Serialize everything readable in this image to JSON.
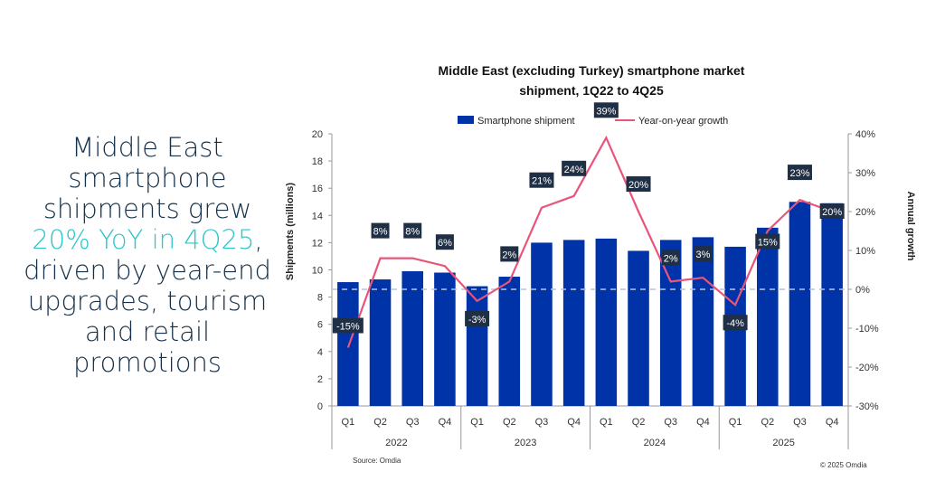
{
  "headline": {
    "before": "Middle East smartphone shipments grew",
    "highlight": "20% YoY in 4Q25",
    "after": ", driven by year-end upgrades, tourism and retail promotions"
  },
  "colors": {
    "bar": "#0033a8",
    "line": "#e8557a",
    "label_bg": "#1f2f45",
    "headline": "#14304a",
    "highlight": "#2ec6c9"
  },
  "chart_data": {
    "type": "bar",
    "title_line1": "Middle East (excluding Turkey) smartphone market",
    "title_line2": "shipment, 1Q22 to 4Q25",
    "ylabel": "Shipments (millions)",
    "y2label": "Annual growth",
    "ylim": [
      0,
      20
    ],
    "y2lim": [
      -30,
      40
    ],
    "yticks": [
      "0",
      "2",
      "4",
      "6",
      "8",
      "10",
      "12",
      "14",
      "16",
      "18",
      "20"
    ],
    "y2ticks": [
      "-30%",
      "-20%",
      "-10%",
      "0%",
      "10%",
      "20%",
      "30%",
      "40%"
    ],
    "categories": [
      "Q1",
      "Q2",
      "Q3",
      "Q4",
      "Q1",
      "Q2",
      "Q3",
      "Q4",
      "Q1",
      "Q2",
      "Q3",
      "Q4",
      "Q1",
      "Q2",
      "Q3",
      "Q4"
    ],
    "years": [
      "2022",
      "2023",
      "2024",
      "2025"
    ],
    "legend": [
      "Smartphone shipment",
      "Year-on-year growth"
    ],
    "series": [
      {
        "name": "Smartphone shipment",
        "type": "bar",
        "axis": "left",
        "values": [
          9.1,
          9.3,
          9.9,
          9.8,
          8.8,
          9.5,
          12.0,
          12.2,
          12.3,
          11.4,
          12.2,
          12.4,
          11.7,
          13.1,
          15.0,
          14.9
        ]
      },
      {
        "name": "Year-on-year growth",
        "type": "line",
        "axis": "right",
        "values": [
          -15,
          8,
          8,
          6,
          -3,
          2,
          21,
          24,
          39,
          20,
          2,
          3,
          -4,
          15,
          23,
          20
        ],
        "labels": [
          "-15%",
          "8%",
          "8%",
          "6%",
          "-3%",
          "2%",
          "21%",
          "24%",
          "39%",
          "20%",
          "2%",
          "3%",
          "-4%",
          "15%",
          "23%",
          "20%"
        ]
      }
    ],
    "source": "Source: Omdia",
    "copyright": "© 2025 Omdia"
  }
}
